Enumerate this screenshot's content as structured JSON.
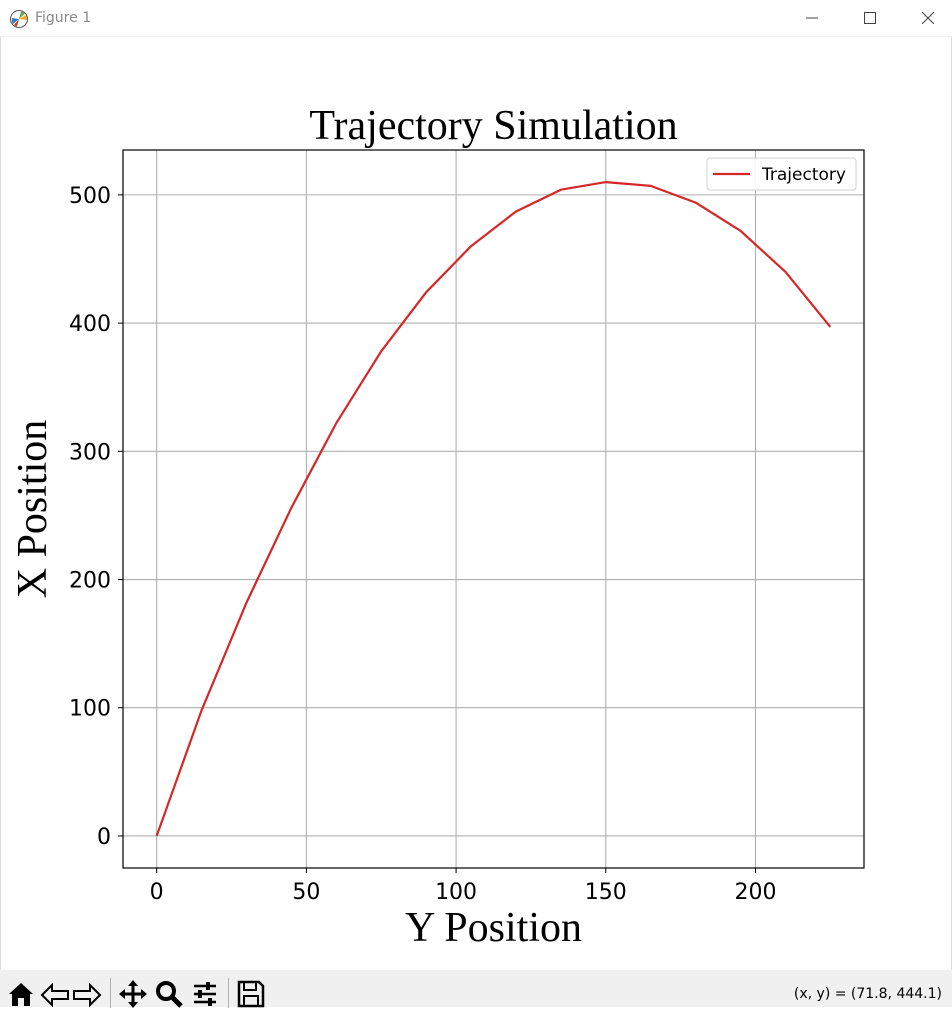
{
  "window": {
    "title": "Figure 1",
    "buttons": [
      "minimize",
      "maximize",
      "close"
    ]
  },
  "toolbar": {
    "buttons": [
      "home-icon",
      "back-arrow-icon",
      "forward-arrow-icon",
      "pan-move-icon",
      "zoom-magnifier-icon",
      "configure-subplots-icon",
      "save-disk-icon"
    ],
    "coords_text": "(x, y) = (71.8, 444.1)"
  },
  "chart_data": {
    "type": "line",
    "title": "Trajectory Simulation",
    "xlabel": "Y Position",
    "ylabel": "X Position",
    "xlim": [
      -11.25,
      236.25
    ],
    "ylim": [
      -25,
      535
    ],
    "xticks": [
      0,
      50,
      100,
      150,
      200
    ],
    "yticks": [
      0,
      100,
      200,
      300,
      400,
      500
    ],
    "grid": true,
    "legend_position": "upper right",
    "series": [
      {
        "name": "Trajectory",
        "color": "#d62728",
        "x": [
          0,
          15,
          30,
          45,
          60,
          75,
          90,
          105,
          120,
          135,
          150,
          165,
          180,
          195,
          210,
          225
        ],
        "y": [
          0,
          98,
          182,
          256,
          322,
          378,
          424,
          460,
          487,
          504,
          510,
          507,
          494,
          472,
          440,
          397
        ]
      }
    ]
  }
}
